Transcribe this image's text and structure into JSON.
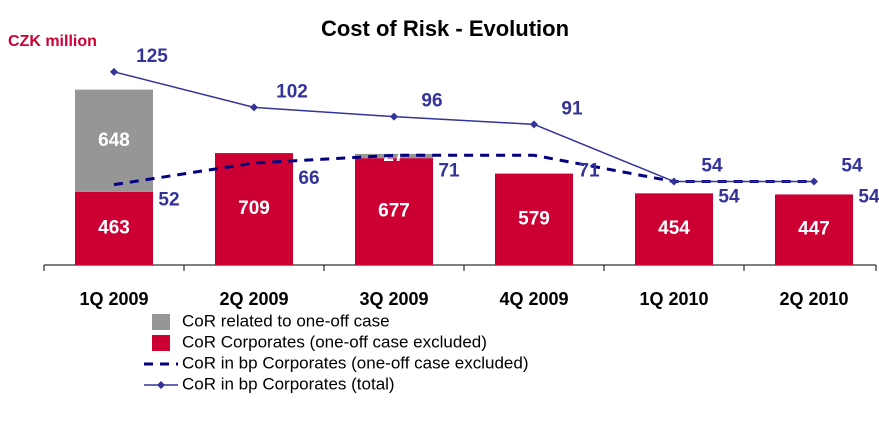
{
  "chart_data": {
    "type": "bar",
    "title": "Cost of Risk - Evolution",
    "y_label": "CZK million",
    "categories": [
      "1Q 2009",
      "2Q 2009",
      "3Q 2009",
      "4Q 2009",
      "1Q 2010",
      "2Q 2010"
    ],
    "ylim": [
      0,
      1400
    ],
    "y2lim": [
      0,
      143
    ],
    "stacked": true,
    "series": [
      {
        "name": "CoR related to one-off case",
        "color": "#969696",
        "values": [
          648,
          null,
          27,
          null,
          null,
          null
        ]
      },
      {
        "name": "CoR Corporates (one-off case excluded)",
        "color": "#cc0033",
        "values": [
          463,
          709,
          677,
          579,
          454,
          447
        ]
      },
      {
        "name": "CoR in bp Corporates (one-off case excluded)",
        "color": "#000080",
        "type": "line",
        "dashed": true,
        "axis": "y2",
        "values": [
          52,
          66,
          71,
          71,
          54,
          54
        ]
      },
      {
        "name": "CoR in bp Corporates (total)",
        "color": "#333399",
        "type": "line",
        "markers": true,
        "axis": "y2",
        "values": [
          125,
          102,
          96,
          91,
          54,
          54
        ]
      }
    ]
  }
}
